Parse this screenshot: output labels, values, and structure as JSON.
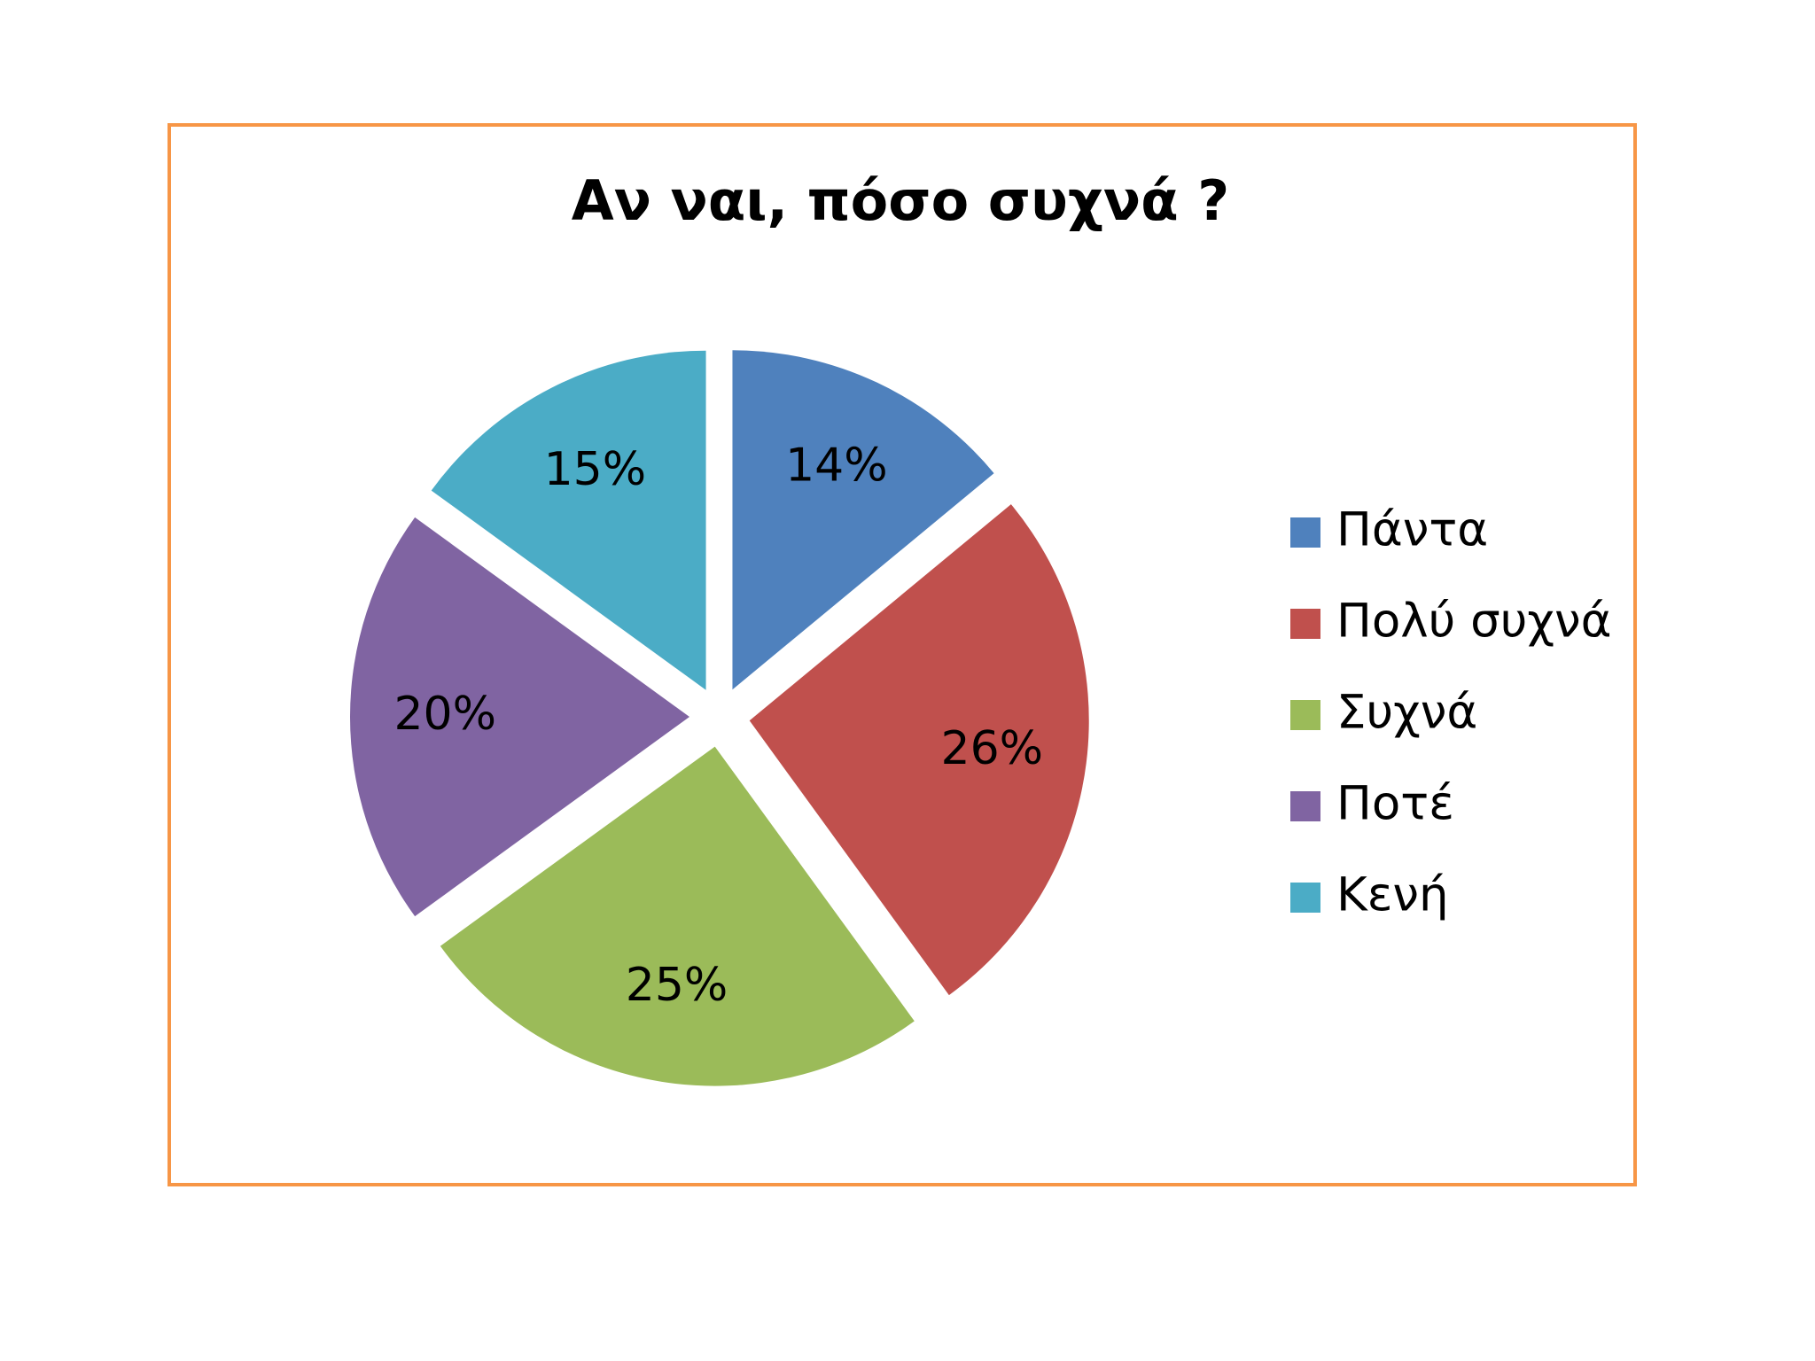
{
  "chart_data": {
    "type": "pie",
    "title": "Αν ναι, πόσο συχνά ?",
    "categories": [
      "Πάντα",
      "Πολύ συχνά",
      "Συχνά",
      "Ποτέ",
      "Κενή"
    ],
    "values": [
      14,
      26,
      25,
      20,
      15
    ],
    "value_labels": [
      "14%",
      "26%",
      "25%",
      "20%",
      "15%"
    ],
    "colors": [
      "#4f81bd",
      "#c0504d",
      "#9bbb59",
      "#8064a2",
      "#4bacc6"
    ],
    "legend": "right"
  }
}
